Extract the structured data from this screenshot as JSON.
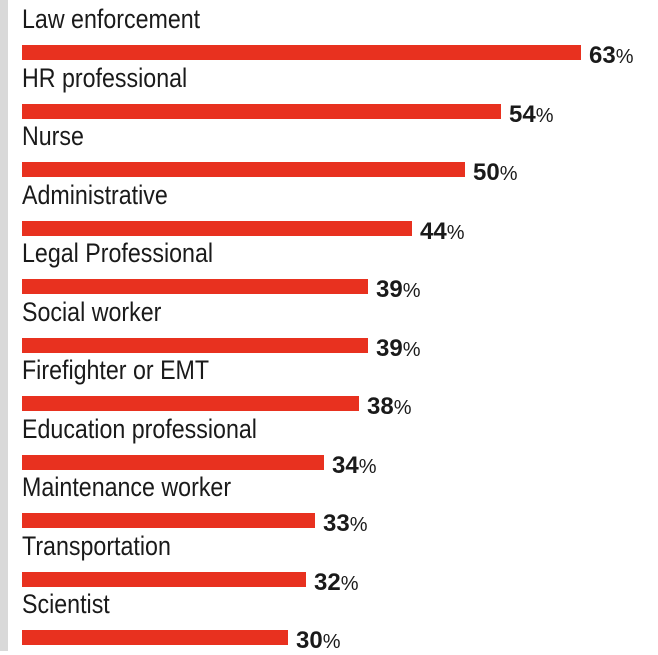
{
  "chart_data": {
    "type": "bar",
    "orientation": "horizontal",
    "categories": [
      "Law enforcement",
      "HR professional",
      "Nurse",
      "Administrative",
      "Legal Professional",
      "Social worker",
      "Firefighter or EMT",
      "Education professional",
      "Maintenance worker",
      "Transportation",
      "Scientist"
    ],
    "values": [
      63,
      54,
      50,
      44,
      39,
      39,
      38,
      34,
      33,
      32,
      30
    ],
    "value_suffix": "%",
    "bar_color": "#e8311f",
    "grid": false,
    "legend": "none"
  }
}
